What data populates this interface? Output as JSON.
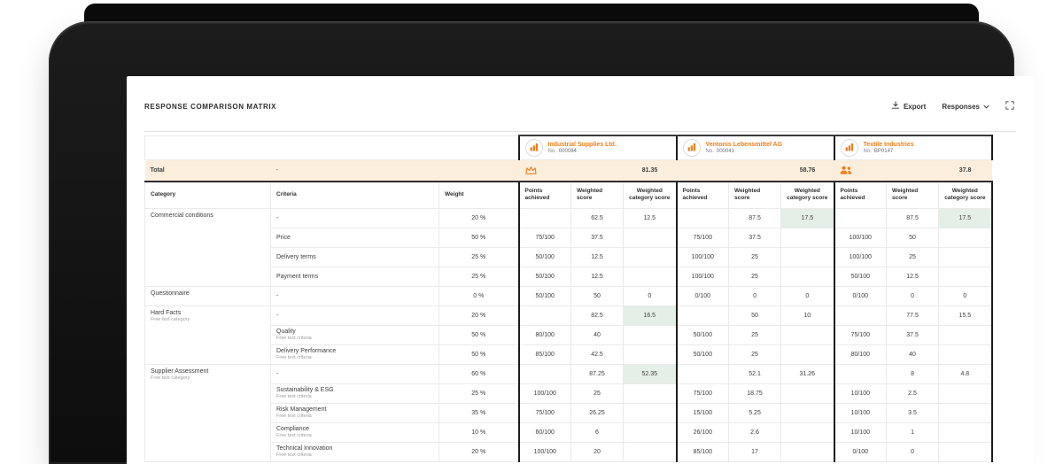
{
  "page": {
    "title": "RESPONSE COMPARISON MATRIX"
  },
  "toolbar": {
    "export_label": "Export",
    "responses_label": "Responses",
    "export_icon": "download-icon",
    "responses_icon": "chevron-down-icon",
    "fullscreen_icon": "expand-icon"
  },
  "colors": {
    "accent_orange": "#EE7F1D",
    "total_row_bg": "#FBEEDC",
    "best_score_bg": "#E4EFE7",
    "block_divider": "#1C1C1C"
  },
  "suppliers": [
    {
      "name": "Industrial Supplies Ltd.",
      "no_label": "No.",
      "number": "000084",
      "total": "81.35",
      "badge": "crown-icon"
    },
    {
      "name": "Ventonis Lebensmittel AG",
      "no_label": "No.",
      "number": "000041",
      "total": "58.76",
      "badge": ""
    },
    {
      "name": "Textile Industries",
      "no_label": "No.",
      "number": "BP0147",
      "total": "37.8",
      "badge": "people-icon"
    }
  ],
  "table": {
    "total_label": "Total",
    "total_criteria": "-",
    "base_columns": [
      "Category",
      "Criteria",
      "Weight"
    ],
    "supplier_columns": [
      "Points achieved",
      "Weighted score",
      "Weighted category score"
    ],
    "rows": [
      {
        "type": "category",
        "category": "Commercial conditions",
        "category_sub": "",
        "span": 4,
        "criteria": "-",
        "criteria_sub": "",
        "weight": "20 %",
        "cells": [
          {
            "p": "",
            "w": "62.5",
            "c": "12.5",
            "hl": false
          },
          {
            "p": "",
            "w": "87.5",
            "c": "17.5",
            "hl": true
          },
          {
            "p": "",
            "w": "87.5",
            "c": "17.5",
            "hl": true
          }
        ]
      },
      {
        "type": "criteria",
        "criteria": "Price",
        "criteria_sub": "",
        "weight": "50 %",
        "cells": [
          {
            "p": "75/100",
            "w": "37.5"
          },
          {
            "p": "75/100",
            "w": "37.5"
          },
          {
            "p": "100/100",
            "w": "50"
          }
        ]
      },
      {
        "type": "criteria",
        "criteria": "Delivery terms",
        "criteria_sub": "",
        "weight": "25 %",
        "cells": [
          {
            "p": "50/100",
            "w": "12.5"
          },
          {
            "p": "100/100",
            "w": "25"
          },
          {
            "p": "100/100",
            "w": "25"
          }
        ]
      },
      {
        "type": "criteria",
        "criteria": "Payment terms",
        "criteria_sub": "",
        "weight": "25 %",
        "cells": [
          {
            "p": "50/100",
            "w": "12.5"
          },
          {
            "p": "100/100",
            "w": "25"
          },
          {
            "p": "50/100",
            "w": "12.5"
          }
        ]
      },
      {
        "type": "category",
        "category": "Questionnaire",
        "category_sub": "",
        "span": 1,
        "criteria": "-",
        "criteria_sub": "",
        "weight": "0 %",
        "cells": [
          {
            "p": "50/100",
            "w": "50",
            "c": "0",
            "hl": false
          },
          {
            "p": "0/100",
            "w": "0",
            "c": "0",
            "hl": false
          },
          {
            "p": "0/100",
            "w": "0",
            "c": "0",
            "hl": false
          }
        ]
      },
      {
        "type": "category",
        "category": "Hard Facts",
        "category_sub": "Free text category",
        "span": 3,
        "criteria": "-",
        "criteria_sub": "",
        "weight": "20 %",
        "cells": [
          {
            "p": "",
            "w": "82.5",
            "c": "16.5",
            "hl": true
          },
          {
            "p": "",
            "w": "50",
            "c": "10",
            "hl": false
          },
          {
            "p": "",
            "w": "77.5",
            "c": "15.5",
            "hl": false
          }
        ]
      },
      {
        "type": "criteria",
        "criteria": "Quality",
        "criteria_sub": "Free text criteria",
        "weight": "50 %",
        "cells": [
          {
            "p": "80/100",
            "w": "40"
          },
          {
            "p": "50/100",
            "w": "25"
          },
          {
            "p": "75/100",
            "w": "37.5"
          }
        ]
      },
      {
        "type": "criteria",
        "criteria": "Delivery Performance",
        "criteria_sub": "Free text criteria",
        "weight": "50 %",
        "cells": [
          {
            "p": "85/100",
            "w": "42.5"
          },
          {
            "p": "50/100",
            "w": "25"
          },
          {
            "p": "80/100",
            "w": "40"
          }
        ]
      },
      {
        "type": "category",
        "category": "Supplier Assessment",
        "category_sub": "Free text category",
        "span": 5,
        "criteria": "-",
        "criteria_sub": "",
        "weight": "60 %",
        "cells": [
          {
            "p": "",
            "w": "87.25",
            "c": "52.35",
            "hl": true
          },
          {
            "p": "",
            "w": "52.1",
            "c": "31.26",
            "hl": false
          },
          {
            "p": "",
            "w": "8",
            "c": "4.8",
            "hl": false
          }
        ]
      },
      {
        "type": "criteria",
        "criteria": "Sustainability & ESG",
        "criteria_sub": "Free text criteria",
        "weight": "25 %",
        "cells": [
          {
            "p": "100/100",
            "w": "25"
          },
          {
            "p": "75/100",
            "w": "18.75"
          },
          {
            "p": "10/100",
            "w": "2.5"
          }
        ]
      },
      {
        "type": "criteria",
        "criteria": "Risk Management",
        "criteria_sub": "Free text criteria",
        "weight": "35 %",
        "cells": [
          {
            "p": "75/100",
            "w": "26.25"
          },
          {
            "p": "15/100",
            "w": "5.25"
          },
          {
            "p": "10/100",
            "w": "3.5"
          }
        ]
      },
      {
        "type": "criteria",
        "criteria": "Compliance",
        "criteria_sub": "Free text criteria",
        "weight": "10 %",
        "cells": [
          {
            "p": "60/100",
            "w": "6"
          },
          {
            "p": "26/100",
            "w": "2.6"
          },
          {
            "p": "10/100",
            "w": "1"
          }
        ]
      },
      {
        "type": "criteria",
        "criteria": "Technical Innovation",
        "criteria_sub": "Free text criteria",
        "weight": "20 %",
        "cells": [
          {
            "p": "100/100",
            "w": "20"
          },
          {
            "p": "85/100",
            "w": "17"
          },
          {
            "p": "0/100",
            "w": "0"
          }
        ]
      }
    ]
  }
}
